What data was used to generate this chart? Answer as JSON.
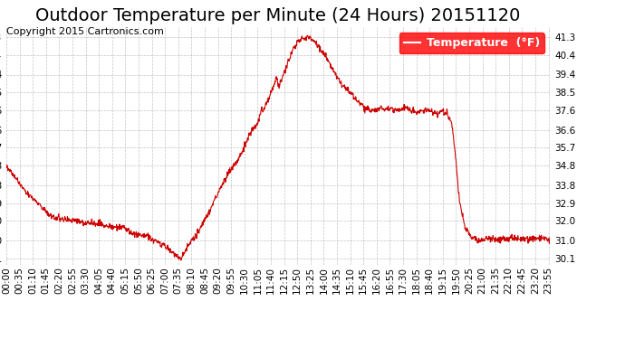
{
  "title": "Outdoor Temperature per Minute (24 Hours) 20151120",
  "copyright": "Copyright 2015 Cartronics.com",
  "legend_label": "Temperature  (°F)",
  "ylabel": "",
  "background_color": "#ffffff",
  "plot_bg_color": "#ffffff",
  "line_color": "#cc0000",
  "grid_color": "#aaaaaa",
  "yticks": [
    30.1,
    31.0,
    32.0,
    32.9,
    33.8,
    34.8,
    35.7,
    36.6,
    37.6,
    38.5,
    39.4,
    40.4,
    41.3
  ],
  "ylim": [
    29.8,
    41.8
  ],
  "title_fontsize": 14,
  "copyright_fontsize": 8,
  "legend_fontsize": 9,
  "tick_fontsize": 7.5
}
